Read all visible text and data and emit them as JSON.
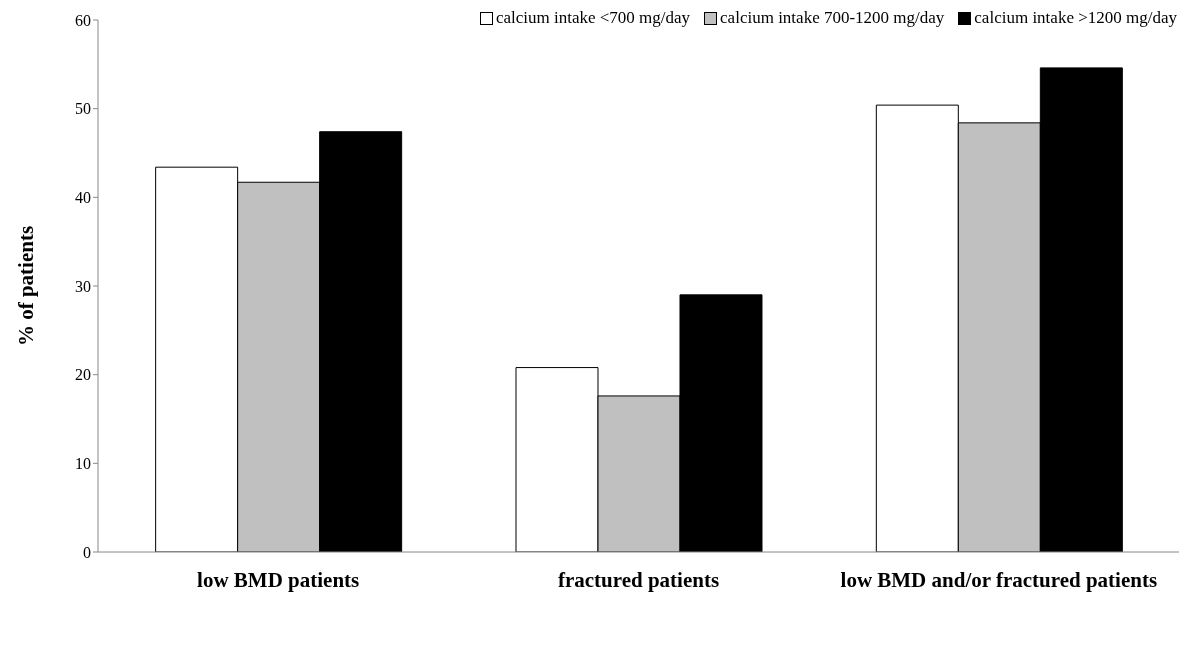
{
  "chart_data": {
    "type": "bar",
    "ylabel": "% of patients",
    "categories": [
      "low BMD patients",
      "fractured patients",
      "low BMD and/or fractured patients"
    ],
    "series": [
      {
        "name": "calcium intake <700 mg/day",
        "color": "#ffffff",
        "values": [
          43.4,
          20.8,
          50.4
        ]
      },
      {
        "name": "calcium intake 700-1200 mg/day",
        "color": "#c0c0c0",
        "values": [
          41.7,
          17.6,
          48.4
        ]
      },
      {
        "name": "calcium intake >1200 mg/day",
        "color": "#000000",
        "values": [
          47.4,
          29.0,
          54.6
        ]
      }
    ],
    "ylim": [
      0,
      60
    ],
    "yticks": [
      0,
      10,
      20,
      30,
      40,
      50,
      60
    ],
    "grid": false,
    "legend": "top right"
  }
}
